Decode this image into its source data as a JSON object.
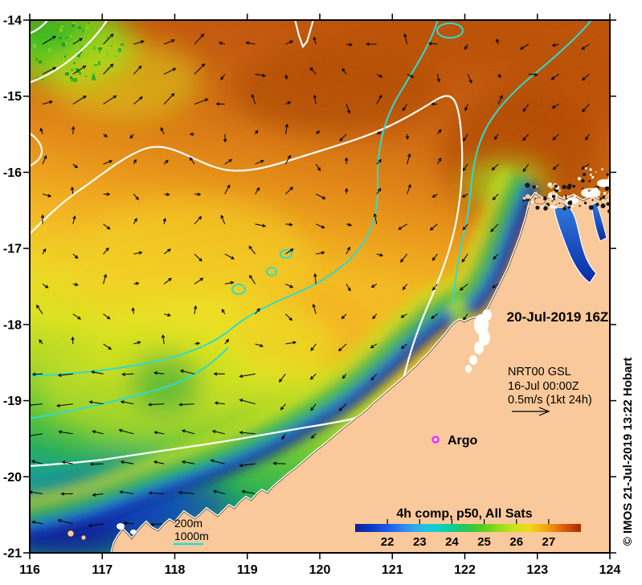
{
  "figure": {
    "datetime_label": "20-Jul-2019 16Z",
    "product_info": {
      "model": "NRT00 GSL",
      "valid_time": "16-Jul 00:00Z",
      "vector_scale_label": "0.5m/s (1kt 24h)"
    },
    "argo": {
      "label": "Argo",
      "marker_color": "#ff2bff"
    },
    "bathymetry_legend": {
      "label_200m": "200m",
      "label_1000m": "1000m",
      "contour_200m_color": "#ffffff",
      "contour_1000m_color": "#28ddd0"
    },
    "colorbar": {
      "title": "4h comp, p50, All Sats",
      "ticks": [
        "22",
        "23",
        "24",
        "25",
        "26",
        "27"
      ],
      "value_range": [
        21,
        28
      ],
      "stops": [
        {
          "o": 0.0,
          "c": "#0a2095"
        },
        {
          "o": 0.07,
          "c": "#0e38c4"
        },
        {
          "o": 0.14,
          "c": "#1a5ae8"
        },
        {
          "o": 0.21,
          "c": "#2f86f0"
        },
        {
          "o": 0.28,
          "c": "#2cb4e8"
        },
        {
          "o": 0.35,
          "c": "#14cfd0"
        },
        {
          "o": 0.42,
          "c": "#0ccf9c"
        },
        {
          "o": 0.49,
          "c": "#28c553"
        },
        {
          "o": 0.56,
          "c": "#55cd22"
        },
        {
          "o": 0.63,
          "c": "#90da1b"
        },
        {
          "o": 0.7,
          "c": "#c9e21b"
        },
        {
          "o": 0.77,
          "c": "#f0da1d"
        },
        {
          "o": 0.83,
          "c": "#f5b014"
        },
        {
          "o": 0.89,
          "c": "#e97c11"
        },
        {
          "o": 0.95,
          "c": "#cd4909"
        },
        {
          "o": 1.0,
          "c": "#a82805"
        }
      ]
    },
    "axes": {
      "x_tick_labels": [
        "116",
        "117",
        "118",
        "119",
        "120",
        "121",
        "122",
        "123",
        "124"
      ],
      "y_tick_labels": [
        "-14",
        "-15",
        "-16",
        "-17",
        "-18",
        "-19",
        "-20",
        "-21"
      ]
    },
    "credit": "© IMOS 21-Jul-2019 13:22 Hobart",
    "colors": {
      "land": "#f9c99b",
      "frame": "#000000",
      "arrows": "#000000",
      "coastline": "#ffffff",
      "ocean_gradient": [
        {
          "o": 0.0,
          "c": "#bf5207"
        },
        {
          "o": 0.1,
          "c": "#c65a0c"
        },
        {
          "o": 0.2,
          "c": "#d06a0e"
        },
        {
          "o": 0.3,
          "c": "#e28413"
        },
        {
          "o": 0.4,
          "c": "#f0a41a"
        },
        {
          "o": 0.48,
          "c": "#f5bf22"
        },
        {
          "o": 0.56,
          "c": "#f0d822"
        },
        {
          "o": 0.64,
          "c": "#dce31e"
        },
        {
          "o": 0.72,
          "c": "#aeda26"
        },
        {
          "o": 0.8,
          "c": "#62c636"
        },
        {
          "o": 0.88,
          "c": "#23b052"
        },
        {
          "o": 0.95,
          "c": "#12a065"
        },
        {
          "o": 1.0,
          "c": "#0d9a6b"
        }
      ]
    }
  }
}
